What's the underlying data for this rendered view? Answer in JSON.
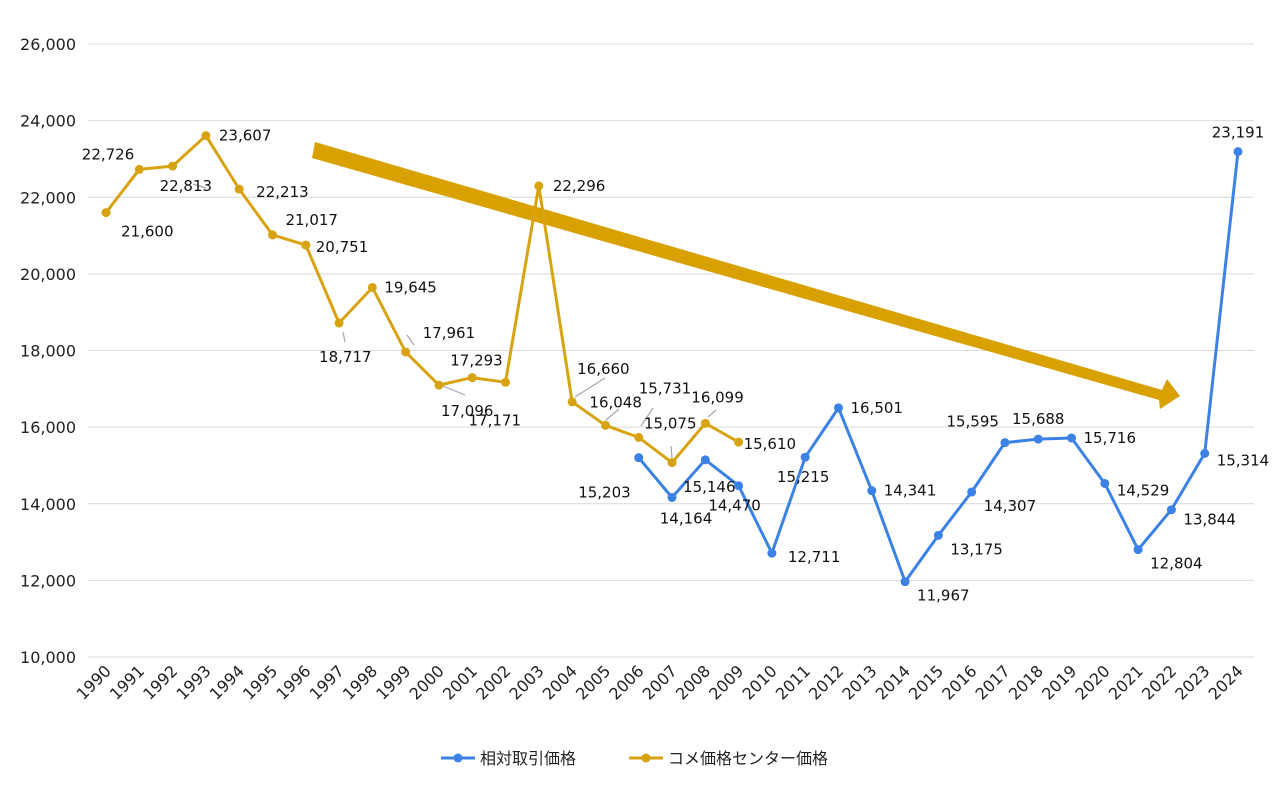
{
  "chart_data": {
    "type": "line",
    "title": "",
    "xlabel": "",
    "ylabel": "",
    "ylim": [
      10000,
      26000
    ],
    "yticks": [
      10000,
      12000,
      14000,
      16000,
      18000,
      20000,
      22000,
      24000,
      26000
    ],
    "ytick_labels": [
      "10,000",
      "12,000",
      "14,000",
      "16,000",
      "18,000",
      "20,000",
      "22,000",
      "24,000",
      "26,000"
    ],
    "grid": true,
    "legend_position": "bottom",
    "categories": [
      "1990",
      "1991",
      "1992",
      "1993",
      "1994",
      "1995",
      "1996",
      "1997",
      "1998",
      "1999",
      "2000",
      "2001",
      "2002",
      "2003",
      "2004",
      "2005",
      "2006",
      "2007",
      "2008",
      "2009",
      "2010",
      "2011",
      "2012",
      "2013",
      "2014",
      "2015",
      "2016",
      "2017",
      "2018",
      "2019",
      "2020",
      "2021",
      "2022",
      "2023",
      "2024"
    ],
    "series": [
      {
        "name": "相対取引価格",
        "color": "#3c82e6",
        "values": [
          null,
          null,
          null,
          null,
          null,
          null,
          null,
          null,
          null,
          null,
          null,
          null,
          null,
          null,
          null,
          null,
          15203,
          14164,
          15146,
          14470,
          12711,
          15215,
          16501,
          14341,
          11967,
          13175,
          14307,
          15595,
          15688,
          15716,
          14529,
          12804,
          13844,
          15314,
          23191
        ],
        "labels": [
          null,
          null,
          null,
          null,
          null,
          null,
          null,
          null,
          null,
          null,
          null,
          null,
          null,
          null,
          null,
          null,
          "15,203",
          "14,164",
          "15,146",
          "14,470",
          "12,711",
          "15,215",
          "16,501",
          "14,341",
          "11,967",
          "13,175",
          "14,307",
          "15,595",
          "15,688",
          "15,716",
          "14,529",
          "12,804",
          "13,844",
          "15,314",
          "23,191"
        ]
      },
      {
        "name": "コメ価格センター価格",
        "color": "#d8a312",
        "values": [
          21600,
          22726,
          22813,
          23607,
          22213,
          21017,
          20751,
          18717,
          19645,
          17961,
          17096,
          17293,
          17171,
          22296,
          16660,
          16048,
          15731,
          15075,
          16099,
          15610,
          null,
          null,
          null,
          null,
          null,
          null,
          null,
          null,
          null,
          null,
          null,
          null,
          null,
          null,
          null
        ],
        "labels": [
          "21,600",
          "22,726",
          "22,813",
          "23,607",
          "22,213",
          "21,017",
          "20,751",
          "18,717",
          "19,645",
          "17,961",
          "17,096",
          "17,293",
          "17,171",
          "22,296",
          "16,660",
          "16,048",
          "15,731",
          "15,075",
          "16,099",
          "15,610",
          null,
          null,
          null,
          null,
          null,
          null,
          null,
          null,
          null,
          null,
          null,
          null,
          null,
          null,
          null
        ]
      }
    ],
    "annotation": "downward-trend-arrow"
  }
}
